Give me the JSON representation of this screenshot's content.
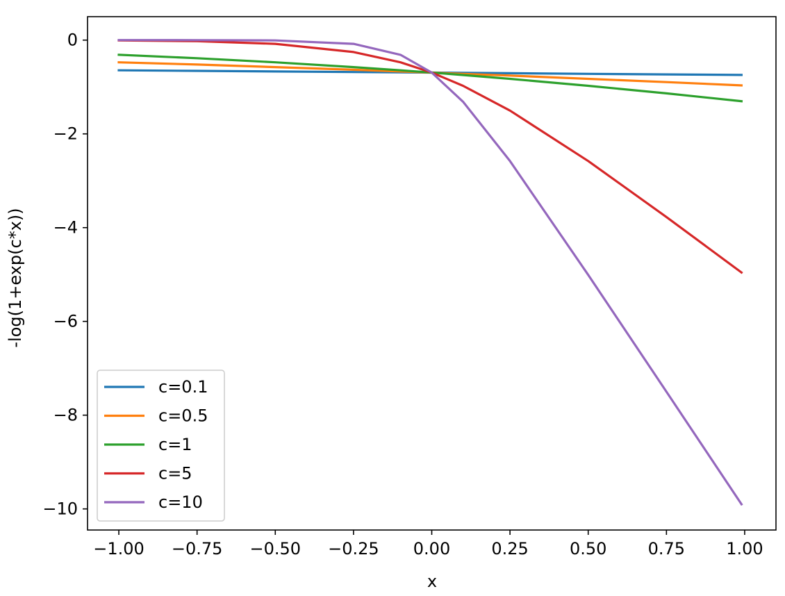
{
  "chart_data": {
    "type": "line",
    "title": "",
    "xlabel": "x",
    "ylabel": "-log(1+exp(c*x))",
    "xlim": [
      -1.1,
      1.1
    ],
    "ylim": [
      -10.45,
      0.5
    ],
    "xticks": [
      -1.0,
      -0.75,
      -0.5,
      -0.25,
      0.0,
      0.25,
      0.5,
      0.75,
      1.0
    ],
    "xtick_labels": [
      "−1.00",
      "−0.75",
      "−0.50",
      "−0.25",
      "0.00",
      "0.25",
      "0.50",
      "0.75",
      "1.00"
    ],
    "yticks": [
      0,
      -2,
      -4,
      -6,
      -8,
      -10
    ],
    "ytick_labels": [
      "0",
      "−2",
      "−4",
      "−6",
      "−8",
      "−10"
    ],
    "grid": false,
    "legend_position": "lower-left",
    "x": [
      -1.0,
      -0.75,
      -0.5,
      -0.25,
      -0.1,
      0.0,
      0.1,
      0.25,
      0.5,
      0.75,
      0.99
    ],
    "series": [
      {
        "name": "c=0.1",
        "color": "#1f77b4",
        "values": [
          -0.644,
          -0.656,
          -0.669,
          -0.681,
          -0.688,
          -0.693,
          -0.698,
          -0.706,
          -0.719,
          -0.732,
          -0.743
        ]
      },
      {
        "name": "c=0.5",
        "color": "#ff7f0e",
        "values": [
          -0.474,
          -0.521,
          -0.576,
          -0.632,
          -0.669,
          -0.693,
          -0.719,
          -0.757,
          -0.826,
          -0.896,
          -0.966
        ]
      },
      {
        "name": "c=1",
        "color": "#2ca02c",
        "values": [
          -0.313,
          -0.386,
          -0.474,
          -0.576,
          -0.644,
          -0.693,
          -0.744,
          -0.826,
          -0.974,
          -1.136,
          -1.303
        ]
      },
      {
        "name": "c=5",
        "color": "#d62728",
        "values": [
          -0.0067,
          -0.0233,
          -0.0789,
          -0.254,
          -0.474,
          -0.693,
          -0.974,
          -1.503,
          -2.579,
          -3.773,
          -4.957
        ]
      },
      {
        "name": "c=10",
        "color": "#9467bd",
        "values": [
          -5e-05,
          -0.00055,
          -0.0067,
          -0.079,
          -0.313,
          -0.693,
          -1.313,
          -2.579,
          -5.007,
          -7.5,
          -9.9
        ]
      }
    ]
  }
}
